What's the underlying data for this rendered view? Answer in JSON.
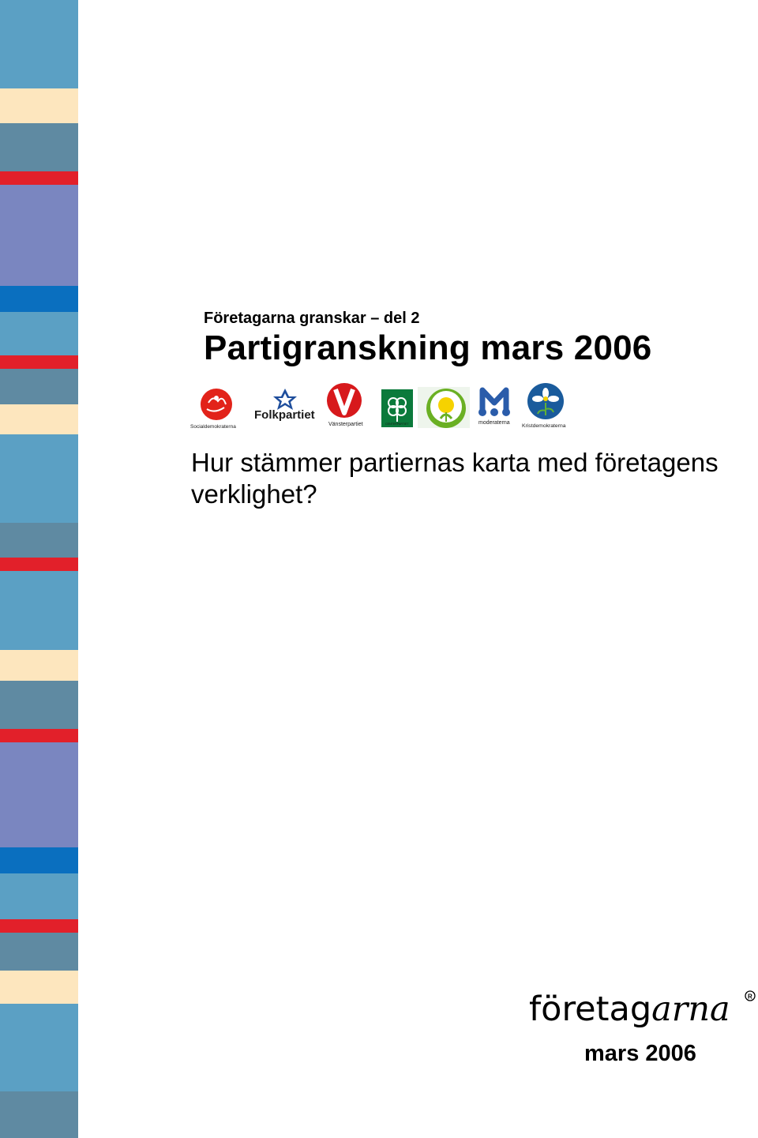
{
  "document": {
    "kicker": "Företagarna granskar – del 2",
    "title": "Partigranskning mars 2006",
    "subtitle": "Hur stämmer partiernas karta med företagens verklighet?",
    "date": "mars 2006"
  },
  "party_logos": [
    {
      "label": "Socialdemokraterna",
      "icon": "rose-icon",
      "color": "#e2231a"
    },
    {
      "label": "Folkpartiet",
      "icon": "folkpartiet-star-icon",
      "color": "#1f4e9c"
    },
    {
      "label": "Vänsterpartiet",
      "icon": "v-letter-icon",
      "color": "#d7191c"
    },
    {
      "label": "CENTERPARTIET",
      "icon": "clover-icon",
      "color": "#0b7a3b"
    },
    {
      "label": "",
      "icon": "dandelion-icon",
      "color": "#6ab023"
    },
    {
      "label": "moderaterna",
      "icon": "m-letter-icon",
      "color": "#2a5caa"
    },
    {
      "label": "Kristdemokraterna",
      "icon": "anemone-icon",
      "color": "#1a5b9c"
    }
  ],
  "brand": {
    "name_regular": "företag",
    "name_italic": "arna",
    "registered_mark": "R"
  },
  "colors": {
    "stripe_light_blue": "#5ba0c4",
    "stripe_grey_blue": "#5f8aa2",
    "stripe_cream": "#fde6be",
    "stripe_red": "#e2202a",
    "stripe_lavender": "#7a86c0",
    "stripe_blue": "#0a6fbf"
  }
}
